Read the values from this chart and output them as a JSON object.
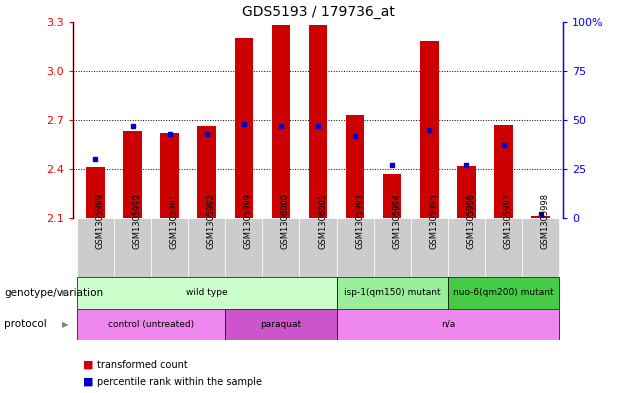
{
  "title": "GDS5193 / 179736_at",
  "samples": [
    "GSM1305989",
    "GSM1305990",
    "GSM1305991",
    "GSM1305992",
    "GSM1305999",
    "GSM1306000",
    "GSM1306001",
    "GSM1305993",
    "GSM1305994",
    "GSM1305995",
    "GSM1305996",
    "GSM1305997",
    "GSM1305998"
  ],
  "transformed_count": [
    2.41,
    2.63,
    2.62,
    2.66,
    3.2,
    3.28,
    3.28,
    2.73,
    2.37,
    3.18,
    2.42,
    2.67,
    2.11
  ],
  "percentile_rank": [
    30,
    47,
    43,
    43,
    48,
    47,
    47,
    42,
    27,
    45,
    27,
    37,
    2
  ],
  "ylim": [
    2.1,
    3.3
  ],
  "y2lim": [
    0,
    100
  ],
  "yticks": [
    2.1,
    2.4,
    2.7,
    3.0,
    3.3
  ],
  "y2ticks": [
    0,
    25,
    50,
    75,
    100
  ],
  "y2ticklabels": [
    "0",
    "25",
    "50",
    "75",
    "100%"
  ],
  "bar_color": "#cc0000",
  "dot_color": "#0000cc",
  "bar_width": 0.5,
  "genotype_groups": [
    {
      "label": "wild type",
      "start": 0,
      "end": 6,
      "color": "#ccffcc"
    },
    {
      "label": "isp-1(qm150) mutant",
      "start": 7,
      "end": 9,
      "color": "#99ee99"
    },
    {
      "label": "nuo-6(qm200) mutant",
      "start": 10,
      "end": 12,
      "color": "#44cc44"
    }
  ],
  "protocol_groups": [
    {
      "label": "control (untreated)",
      "start": 0,
      "end": 3,
      "color": "#ee88ee"
    },
    {
      "label": "paraquat",
      "start": 4,
      "end": 6,
      "color": "#cc55cc"
    },
    {
      "label": "n/a",
      "start": 7,
      "end": 12,
      "color": "#ee88ee"
    }
  ],
  "genotype_label": "genotype/variation",
  "protocol_label": "protocol",
  "legend_items": [
    "transformed count",
    "percentile rank within the sample"
  ],
  "bg_color": "#ffffff",
  "grid_color": "#000000",
  "dotted_yticks": [
    2.4,
    2.7,
    3.0
  ]
}
